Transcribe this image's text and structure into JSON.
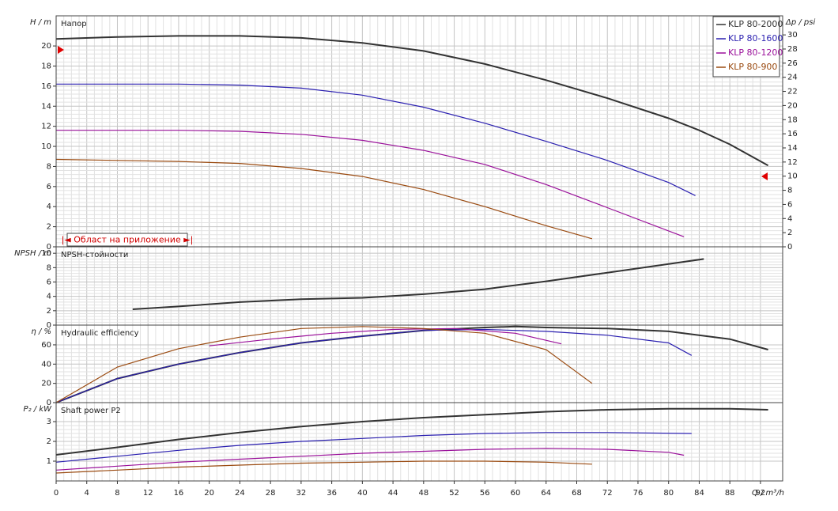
{
  "range_button": "|◄ Област на приложение ►|",
  "chart_data": [
    {
      "type": "line",
      "title": "Напор",
      "ylabel": "H / m",
      "y2label": "Δp / psi",
      "legend": "upper right",
      "ylim": [
        0,
        23
      ],
      "yticks": [
        0,
        2,
        4,
        6,
        8,
        10,
        12,
        14,
        16,
        18,
        20
      ],
      "y2lim": [
        0,
        32.7
      ],
      "y2ticks": [
        0,
        2,
        4,
        6,
        8,
        10,
        12,
        14,
        16,
        18,
        20,
        22,
        24,
        26,
        28,
        30
      ],
      "series": [
        {
          "name": "KLP 80-2000",
          "color": "#333333",
          "x": [
            0,
            8,
            16,
            24,
            32,
            40,
            48,
            56,
            64,
            72,
            80,
            84,
            88,
            93
          ],
          "values": [
            20.7,
            20.9,
            21.0,
            21.0,
            20.8,
            20.3,
            19.5,
            18.2,
            16.6,
            14.8,
            12.8,
            11.6,
            10.2,
            8.1
          ]
        },
        {
          "name": "KLP 80-1600",
          "color": "#2a1fb0",
          "x": [
            0,
            8,
            16,
            24,
            32,
            40,
            48,
            56,
            64,
            72,
            80,
            83.5
          ],
          "values": [
            16.2,
            16.2,
            16.2,
            16.1,
            15.8,
            15.1,
            13.9,
            12.3,
            10.5,
            8.6,
            6.4,
            5.1
          ]
        },
        {
          "name": "KLP 80-1200",
          "color": "#9a109a",
          "x": [
            0,
            8,
            16,
            24,
            32,
            40,
            48,
            56,
            64,
            72,
            82
          ],
          "values": [
            11.6,
            11.6,
            11.6,
            11.5,
            11.2,
            10.6,
            9.6,
            8.2,
            6.2,
            3.9,
            1.0
          ]
        },
        {
          "name": "KLP 80-900",
          "color": "#9a4a10",
          "x": [
            0,
            8,
            16,
            24,
            32,
            40,
            48,
            56,
            64,
            70
          ],
          "values": [
            8.7,
            8.6,
            8.5,
            8.3,
            7.8,
            7.0,
            5.7,
            4.0,
            2.1,
            0.8
          ]
        }
      ]
    },
    {
      "type": "line",
      "title": "NPSH-стойности",
      "ylabel": "NPSH / m",
      "ylim": [
        0,
        10.9
      ],
      "yticks": [
        0,
        2,
        4,
        6,
        8,
        10
      ],
      "series": [
        {
          "color": "#333333",
          "x": [
            10,
            16,
            24,
            32,
            40,
            48,
            56,
            64,
            72,
            80,
            84.6
          ],
          "values": [
            2.2,
            2.6,
            3.2,
            3.6,
            3.8,
            4.3,
            5.0,
            6.1,
            7.3,
            8.5,
            9.2
          ]
        }
      ]
    },
    {
      "type": "line",
      "title": "Hydraulic efficiency",
      "ylabel": "η / %",
      "ylim": [
        0,
        80.5
      ],
      "yticks": [
        0,
        20,
        40,
        60
      ],
      "series": [
        {
          "color": "#333333",
          "x": [
            0,
            8,
            16,
            24,
            32,
            40,
            48,
            56,
            60,
            64,
            72,
            80,
            88,
            93
          ],
          "values": [
            0,
            25,
            40,
            52,
            62,
            69,
            75,
            78,
            79,
            78,
            77,
            74,
            66,
            55
          ]
        },
        {
          "color": "#2a1fb0",
          "x": [
            0,
            8,
            16,
            24,
            32,
            40,
            48,
            56,
            64,
            72,
            80,
            83
          ],
          "values": [
            0,
            25,
            40,
            52,
            62,
            69,
            75,
            76,
            74,
            70,
            62,
            49
          ]
        },
        {
          "color": "#9a109a",
          "x": [
            20,
            28,
            36,
            44,
            52,
            60,
            66
          ],
          "values": [
            59,
            66,
            72,
            76,
            77,
            72,
            61
          ]
        },
        {
          "color": "#9a4a10",
          "x": [
            0,
            8,
            16,
            24,
            32,
            40,
            48,
            56,
            64,
            70
          ],
          "values": [
            0,
            37,
            56,
            68,
            77,
            79,
            77,
            72,
            55,
            20
          ]
        }
      ]
    },
    {
      "type": "line",
      "title": "Shaft power P2",
      "ylabel": "P₂ / kW",
      "xlabel": "Q / m³/h",
      "ylim": [
        0,
        3.96
      ],
      "yticks": [
        1,
        2,
        3
      ],
      "xlim": [
        0,
        94.9
      ],
      "xticks": [
        0,
        4,
        8,
        12,
        16,
        20,
        24,
        28,
        32,
        36,
        40,
        44,
        48,
        52,
        56,
        60,
        64,
        68,
        72,
        76,
        80,
        84,
        88,
        92
      ],
      "series": [
        {
          "color": "#333333",
          "x": [
            0,
            8,
            16,
            24,
            32,
            40,
            48,
            56,
            64,
            72,
            80,
            88,
            93
          ],
          "values": [
            1.32,
            1.7,
            2.1,
            2.45,
            2.75,
            3.0,
            3.2,
            3.35,
            3.5,
            3.6,
            3.65,
            3.65,
            3.6
          ]
        },
        {
          "color": "#2a1fb0",
          "x": [
            0,
            8,
            16,
            24,
            32,
            40,
            48,
            56,
            64,
            72,
            83
          ],
          "values": [
            0.95,
            1.25,
            1.55,
            1.8,
            2.0,
            2.15,
            2.3,
            2.4,
            2.45,
            2.45,
            2.4
          ]
        },
        {
          "color": "#9a109a",
          "x": [
            0,
            8,
            16,
            24,
            32,
            40,
            48,
            56,
            64,
            72,
            80,
            82
          ],
          "values": [
            0.55,
            0.75,
            0.95,
            1.1,
            1.25,
            1.4,
            1.5,
            1.6,
            1.65,
            1.6,
            1.45,
            1.3
          ]
        },
        {
          "color": "#9a4a10",
          "x": [
            0,
            8,
            16,
            24,
            32,
            40,
            48,
            56,
            64,
            70
          ],
          "values": [
            0.4,
            0.55,
            0.7,
            0.8,
            0.9,
            0.95,
            1.0,
            1.0,
            0.95,
            0.85
          ]
        }
      ]
    }
  ]
}
